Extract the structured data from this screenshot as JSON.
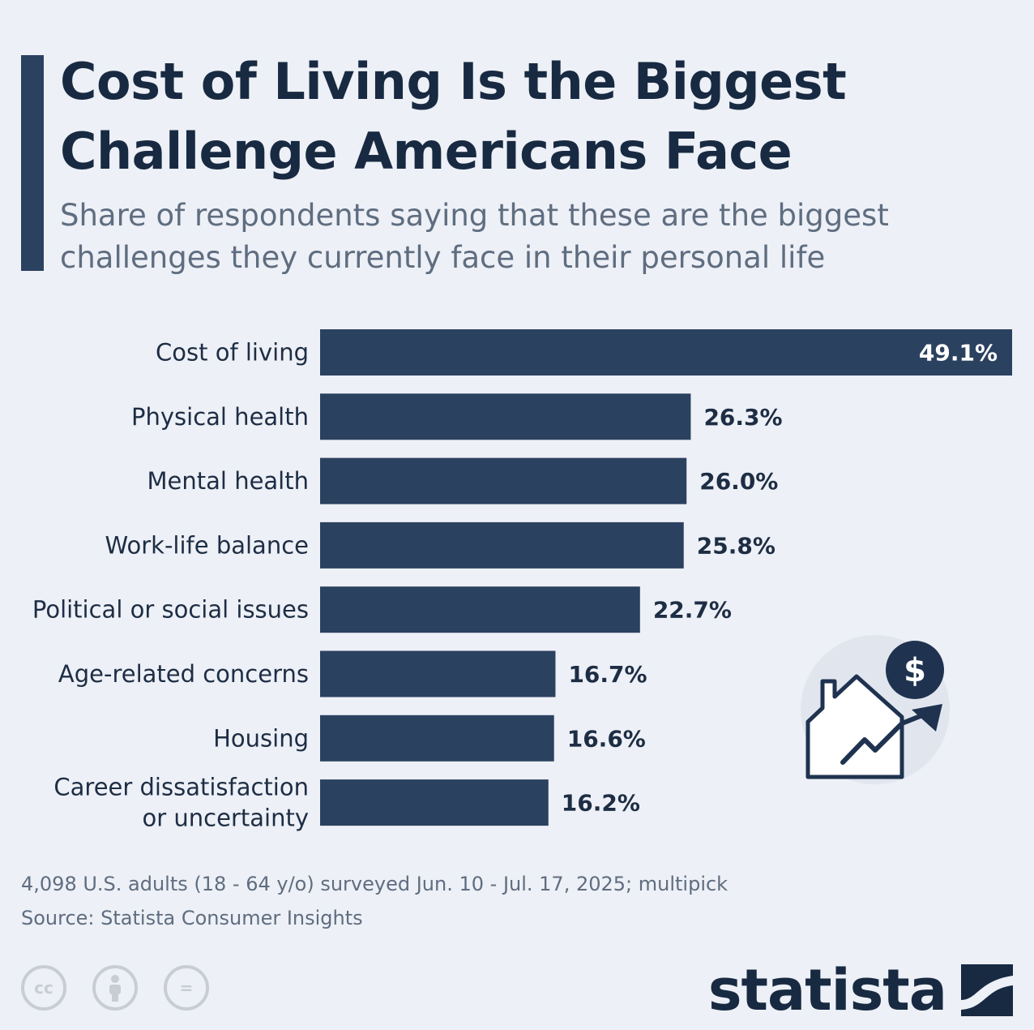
{
  "header": {
    "title_line1": "Cost of Living Is the Biggest",
    "title_line2": "Challenge Americans Face",
    "subtitle_line1": "Share of respondents saying that these are the biggest",
    "subtitle_line2": "challenges they currently face in their personal life"
  },
  "chart_data": {
    "type": "bar",
    "orientation": "horizontal",
    "categories": [
      [
        "Cost of living"
      ],
      [
        "Physical health"
      ],
      [
        "Mental health"
      ],
      [
        "Work-life balance"
      ],
      [
        "Political or social issues"
      ],
      [
        "Age-related concerns"
      ],
      [
        "Housing"
      ],
      [
        "Career dissatisfaction",
        "or uncertainty"
      ]
    ],
    "values": [
      49.1,
      26.3,
      26.0,
      25.8,
      22.7,
      16.7,
      16.6,
      16.2
    ],
    "value_labels": [
      "49.1%",
      "26.3%",
      "26.0%",
      "25.8%",
      "22.7%",
      "16.7%",
      "16.6%",
      "16.2%"
    ],
    "xlim": [
      0,
      49.1
    ],
    "bar_color": "#2b4160",
    "label_inside_color": "#ffffff",
    "label_outside_color": "#1d2d44",
    "grid": false
  },
  "illustration": {
    "icon": "house-rising-price-icon",
    "currency_symbol": "$"
  },
  "footer": {
    "note": "4,098 U.S. adults (18 - 64 y/o) surveyed Jun. 10 - Jul. 17, 2025; multipick",
    "source": "Source: Statista Consumer Insights",
    "license_icons": [
      "cc-icon",
      "attribution-icon",
      "no-derivatives-icon"
    ],
    "license_text": [
      "cc",
      "",
      "="
    ],
    "brand": "statista"
  }
}
